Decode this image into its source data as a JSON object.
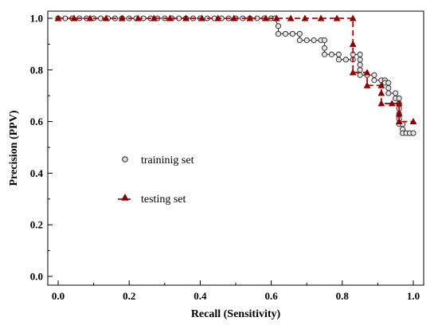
{
  "chart_data": {
    "type": "line",
    "xlabel": "Recall (Sensitivity)",
    "ylabel": "Precision (PPV)",
    "xlim": [
      0.0,
      1.0
    ],
    "ylim": [
      0.0,
      1.0
    ],
    "xticks": [
      0.0,
      0.2,
      0.4,
      0.6,
      0.8,
      1.0
    ],
    "yticks": [
      0.0,
      0.2,
      0.4,
      0.6,
      0.8,
      1.0
    ],
    "xtick_labels": [
      "0.0",
      "0.2",
      "0.4",
      "0.6",
      "0.8",
      "1.0"
    ],
    "ytick_labels": [
      "0.0",
      "0.2",
      "0.4",
      "0.6",
      "0.8",
      "1.0"
    ],
    "grid": false,
    "legend_position": "center-left",
    "series": [
      {
        "name": "traininig set",
        "color": "#333333",
        "marker": "circle",
        "line_style": "solid",
        "points": [
          [
            0.0,
            1.0
          ],
          [
            0.02,
            1.0
          ],
          [
            0.04,
            1.0
          ],
          [
            0.06,
            1.0
          ],
          [
            0.08,
            1.0
          ],
          [
            0.1,
            1.0
          ],
          [
            0.12,
            1.0
          ],
          [
            0.14,
            1.0
          ],
          [
            0.16,
            1.0
          ],
          [
            0.18,
            1.0
          ],
          [
            0.2,
            1.0
          ],
          [
            0.22,
            1.0
          ],
          [
            0.24,
            1.0
          ],
          [
            0.26,
            1.0
          ],
          [
            0.28,
            1.0
          ],
          [
            0.3,
            1.0
          ],
          [
            0.32,
            1.0
          ],
          [
            0.34,
            1.0
          ],
          [
            0.36,
            1.0
          ],
          [
            0.38,
            1.0
          ],
          [
            0.4,
            1.0
          ],
          [
            0.42,
            1.0
          ],
          [
            0.44,
            1.0
          ],
          [
            0.46,
            1.0
          ],
          [
            0.48,
            1.0
          ],
          [
            0.5,
            1.0
          ],
          [
            0.52,
            1.0
          ],
          [
            0.54,
            1.0
          ],
          [
            0.56,
            1.0
          ],
          [
            0.58,
            1.0
          ],
          [
            0.6,
            1.0
          ],
          [
            0.61,
            1.0
          ],
          [
            0.62,
            0.97
          ],
          [
            0.62,
            0.94
          ],
          [
            0.64,
            0.94
          ],
          [
            0.66,
            0.94
          ],
          [
            0.68,
            0.94
          ],
          [
            0.68,
            0.915
          ],
          [
            0.7,
            0.915
          ],
          [
            0.72,
            0.915
          ],
          [
            0.74,
            0.915
          ],
          [
            0.75,
            0.915
          ],
          [
            0.75,
            0.885
          ],
          [
            0.75,
            0.86
          ],
          [
            0.77,
            0.86
          ],
          [
            0.79,
            0.86
          ],
          [
            0.79,
            0.84
          ],
          [
            0.81,
            0.84
          ],
          [
            0.83,
            0.84
          ],
          [
            0.83,
            0.86
          ],
          [
            0.85,
            0.86
          ],
          [
            0.85,
            0.84
          ],
          [
            0.85,
            0.82
          ],
          [
            0.85,
            0.8
          ],
          [
            0.85,
            0.78
          ],
          [
            0.87,
            0.78
          ],
          [
            0.89,
            0.78
          ],
          [
            0.89,
            0.76
          ],
          [
            0.91,
            0.76
          ],
          [
            0.92,
            0.76
          ],
          [
            0.92,
            0.75
          ],
          [
            0.93,
            0.75
          ],
          [
            0.93,
            0.73
          ],
          [
            0.93,
            0.71
          ],
          [
            0.95,
            0.71
          ],
          [
            0.95,
            0.69
          ],
          [
            0.96,
            0.69
          ],
          [
            0.96,
            0.67
          ],
          [
            0.96,
            0.65
          ],
          [
            0.96,
            0.63
          ],
          [
            0.96,
            0.61
          ],
          [
            0.96,
            0.59
          ],
          [
            0.97,
            0.59
          ],
          [
            0.97,
            0.57
          ],
          [
            0.97,
            0.555
          ],
          [
            0.98,
            0.555
          ],
          [
            0.99,
            0.555
          ],
          [
            1.0,
            0.555
          ]
        ]
      },
      {
        "name": "testing set",
        "color": "#cc0000",
        "marker_color": "#8b0000",
        "marker": "triangle",
        "line_style": "dashed",
        "points": [
          [
            0.0,
            1.0
          ],
          [
            0.045,
            1.0
          ],
          [
            0.09,
            1.0
          ],
          [
            0.135,
            1.0
          ],
          [
            0.18,
            1.0
          ],
          [
            0.225,
            1.0
          ],
          [
            0.27,
            1.0
          ],
          [
            0.315,
            1.0
          ],
          [
            0.36,
            1.0
          ],
          [
            0.405,
            1.0
          ],
          [
            0.45,
            1.0
          ],
          [
            0.495,
            1.0
          ],
          [
            0.54,
            1.0
          ],
          [
            0.585,
            1.0
          ],
          [
            0.615,
            1.0
          ],
          [
            0.655,
            1.0
          ],
          [
            0.695,
            1.0
          ],
          [
            0.74,
            1.0
          ],
          [
            0.785,
            1.0
          ],
          [
            0.83,
            1.0
          ],
          [
            0.83,
            0.9
          ],
          [
            0.83,
            0.79
          ],
          [
            0.87,
            0.79
          ],
          [
            0.87,
            0.74
          ],
          [
            0.91,
            0.74
          ],
          [
            0.91,
            0.71
          ],
          [
            0.91,
            0.67
          ],
          [
            0.94,
            0.67
          ],
          [
            0.96,
            0.67
          ],
          [
            0.96,
            0.63
          ],
          [
            0.96,
            0.6
          ],
          [
            1.0,
            0.6
          ]
        ]
      }
    ]
  }
}
